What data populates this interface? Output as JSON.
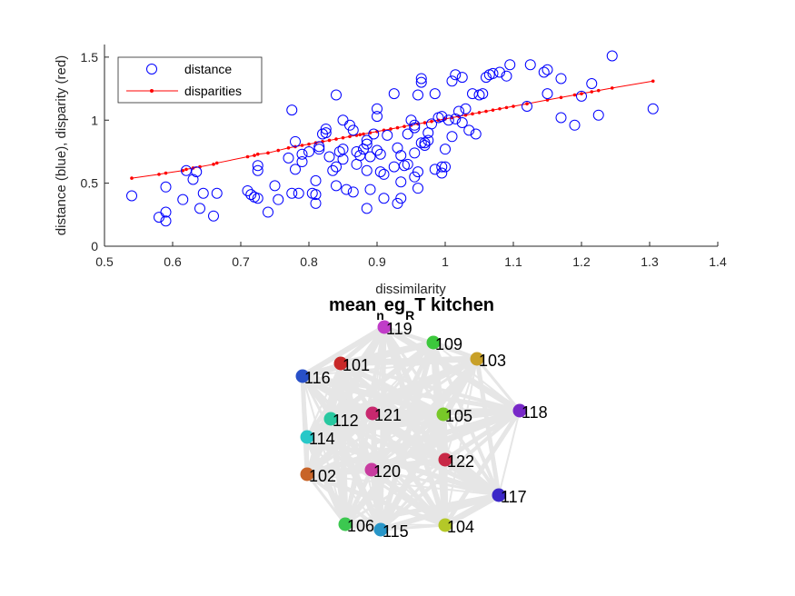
{
  "chart_data": [
    {
      "type": "scatter",
      "xlabel": "dissimilarity",
      "ylabel": "distance (blue), disparity (red)",
      "xlim": [
        0.5,
        1.4
      ],
      "ylim": [
        0,
        1.6
      ],
      "xticks": [
        0.5,
        0.6,
        0.7,
        0.8,
        0.9,
        1.0,
        1.1,
        1.2,
        1.3,
        1.4
      ],
      "xtick_labels": [
        "0.5",
        "0.6",
        "0.7",
        "0.8",
        "0.9",
        "1",
        "1.1",
        "1.2",
        "1.3",
        "1.4"
      ],
      "yticks": [
        0,
        0.5,
        1,
        1.5
      ],
      "ytick_labels": [
        "0",
        "0.5",
        "1",
        "1.5"
      ],
      "grid": false,
      "legend_position": "top-left",
      "series": [
        {
          "name": "distance",
          "marker": "open-circle",
          "color": "#0000ff",
          "points": [
            [
              0.54,
              0.4
            ],
            [
              0.58,
              0.23
            ],
            [
              0.59,
              0.2
            ],
            [
              0.59,
              0.27
            ],
            [
              0.59,
              0.47
            ],
            [
              0.615,
              0.37
            ],
            [
              0.62,
              0.6
            ],
            [
              0.63,
              0.53
            ],
            [
              0.635,
              0.59
            ],
            [
              0.64,
              0.3
            ],
            [
              0.645,
              0.42
            ],
            [
              0.66,
              0.24
            ],
            [
              0.665,
              0.42
            ],
            [
              0.71,
              0.44
            ],
            [
              0.715,
              0.41
            ],
            [
              0.72,
              0.39
            ],
            [
              0.725,
              0.38
            ],
            [
              0.725,
              0.6
            ],
            [
              0.725,
              0.64
            ],
            [
              0.74,
              0.27
            ],
            [
              0.75,
              0.48
            ],
            [
              0.755,
              0.37
            ],
            [
              0.77,
              0.7
            ],
            [
              0.775,
              1.08
            ],
            [
              0.775,
              0.42
            ],
            [
              0.78,
              0.83
            ],
            [
              0.78,
              0.61
            ],
            [
              0.785,
              0.42
            ],
            [
              0.79,
              0.73
            ],
            [
              0.79,
              0.67
            ],
            [
              0.8,
              0.75
            ],
            [
              0.805,
              0.42
            ],
            [
              0.81,
              0.52
            ],
            [
              0.81,
              0.34
            ],
            [
              0.81,
              0.41
            ],
            [
              0.815,
              0.79
            ],
            [
              0.82,
              0.89
            ],
            [
              0.825,
              0.9
            ],
            [
              0.825,
              0.93
            ],
            [
              0.835,
              0.6
            ],
            [
              0.84,
              0.63
            ],
            [
              0.84,
              0.48
            ],
            [
              0.84,
              1.2
            ],
            [
              0.85,
              0.69
            ],
            [
              0.85,
              0.77
            ],
            [
              0.85,
              1.0
            ],
            [
              0.855,
              0.45
            ],
            [
              0.86,
              0.96
            ],
            [
              0.865,
              0.92
            ],
            [
              0.865,
              0.43
            ],
            [
              0.87,
              0.75
            ],
            [
              0.87,
              0.65
            ],
            [
              0.875,
              0.72
            ],
            [
              0.88,
              0.77
            ],
            [
              0.885,
              0.6
            ],
            [
              0.885,
              0.81
            ],
            [
              0.885,
              0.3
            ],
            [
              0.89,
              0.45
            ],
            [
              0.89,
              0.71
            ],
            [
              0.895,
              0.89
            ],
            [
              0.9,
              1.03
            ],
            [
              0.9,
              1.09
            ],
            [
              0.9,
              0.76
            ],
            [
              0.905,
              0.73
            ],
            [
              0.905,
              0.59
            ],
            [
              0.91,
              0.38
            ],
            [
              0.91,
              0.57
            ],
            [
              0.915,
              0.88
            ],
            [
              0.93,
              0.78
            ],
            [
              0.93,
              0.34
            ],
            [
              0.935,
              0.38
            ],
            [
              0.935,
              0.72
            ],
            [
              0.94,
              0.64
            ],
            [
              0.945,
              0.65
            ],
            [
              0.945,
              0.89
            ],
            [
              0.95,
              1.0
            ],
            [
              0.955,
              0.96
            ],
            [
              0.955,
              0.94
            ],
            [
              0.955,
              0.55
            ],
            [
              0.96,
              0.59
            ],
            [
              0.96,
              0.46
            ],
            [
              0.96,
              1.2
            ],
            [
              0.965,
              1.3
            ],
            [
              0.965,
              1.33
            ],
            [
              0.97,
              0.8
            ],
            [
              0.97,
              0.82
            ],
            [
              0.975,
              0.84
            ],
            [
              0.975,
              0.9
            ],
            [
              0.98,
              0.97
            ],
            [
              0.985,
              0.61
            ],
            [
              0.99,
              1.02
            ],
            [
              0.995,
              1.03
            ],
            [
              0.995,
              0.63
            ],
            [
              1.0,
              0.77
            ],
            [
              1.0,
              0.63
            ],
            [
              1.01,
              1.31
            ],
            [
              1.01,
              0.87
            ],
            [
              1.015,
              1.01
            ],
            [
              1.015,
              1.36
            ],
            [
              1.02,
              1.07
            ],
            [
              1.025,
              1.34
            ],
            [
              1.025,
              0.98
            ],
            [
              1.03,
              1.09
            ],
            [
              1.035,
              0.92
            ],
            [
              1.045,
              0.89
            ],
            [
              1.05,
              1.2
            ],
            [
              1.06,
              1.34
            ],
            [
              1.065,
              1.36
            ],
            [
              1.07,
              1.37
            ],
            [
              1.08,
              1.38
            ],
            [
              1.09,
              1.35
            ],
            [
              1.095,
              1.44
            ],
            [
              1.12,
              1.11
            ],
            [
              1.125,
              1.44
            ],
            [
              1.15,
              1.4
            ],
            [
              1.15,
              1.21
            ],
            [
              1.17,
              1.33
            ],
            [
              1.17,
              1.02
            ],
            [
              1.19,
              0.96
            ],
            [
              1.2,
              1.19
            ],
            [
              1.215,
              1.29
            ],
            [
              1.225,
              1.04
            ],
            [
              1.245,
              1.51
            ],
            [
              1.305,
              1.09
            ],
            [
              0.925,
              1.21
            ],
            [
              0.985,
              1.21
            ],
            [
              1.04,
              1.21
            ],
            [
              0.815,
              0.77
            ],
            [
              0.83,
              0.71
            ],
            [
              0.845,
              0.75
            ],
            [
              0.885,
              0.84
            ],
            [
              0.955,
              0.74
            ],
            [
              0.965,
              0.82
            ],
            [
              0.925,
              0.63
            ],
            [
              0.935,
              0.51
            ],
            [
              0.995,
              0.58
            ],
            [
              1.055,
              1.21
            ],
            [
              1.145,
              1.38
            ],
            [
              1.005,
              1.0
            ]
          ]
        },
        {
          "name": "disparities",
          "marker": "line-dot",
          "color": "#ff0000",
          "x": [
            0.54,
            0.58,
            0.59,
            0.615,
            0.62,
            0.63,
            0.64,
            0.66,
            0.665,
            0.71,
            0.72,
            0.725,
            0.74,
            0.755,
            0.77,
            0.78,
            0.79,
            0.8,
            0.81,
            0.82,
            0.83,
            0.84,
            0.85,
            0.86,
            0.87,
            0.875,
            0.88,
            0.89,
            0.9,
            0.91,
            0.92,
            0.93,
            0.94,
            0.95,
            0.96,
            0.97,
            0.98,
            0.99,
            1.0,
            1.01,
            1.02,
            1.03,
            1.04,
            1.05,
            1.06,
            1.07,
            1.08,
            1.09,
            1.1,
            1.12,
            1.15,
            1.17,
            1.19,
            1.2,
            1.215,
            1.225,
            1.245,
            1.305
          ],
          "y": [
            0.54,
            0.57,
            0.58,
            0.6,
            0.61,
            0.62,
            0.63,
            0.65,
            0.66,
            0.71,
            0.72,
            0.73,
            0.74,
            0.76,
            0.78,
            0.79,
            0.8,
            0.81,
            0.82,
            0.83,
            0.84,
            0.85,
            0.86,
            0.87,
            0.88,
            0.885,
            0.89,
            0.9,
            0.91,
            0.92,
            0.93,
            0.94,
            0.95,
            0.96,
            0.97,
            0.98,
            0.99,
            1.0,
            1.01,
            1.02,
            1.03,
            1.04,
            1.05,
            1.06,
            1.07,
            1.08,
            1.09,
            1.1,
            1.11,
            1.13,
            1.16,
            1.18,
            1.2,
            1.21,
            1.225,
            1.235,
            1.255,
            1.31
          ]
        }
      ]
    },
    {
      "type": "network",
      "title_parts": [
        "mean",
        "n",
        "eg",
        "R",
        "T kitchen"
      ],
      "edge_color": "#e6e6e6",
      "nodes": [
        {
          "label": "119",
          "color": "#c03cc8"
        },
        {
          "label": "109",
          "color": "#3cc83c"
        },
        {
          "label": "103",
          "color": "#c8a028"
        },
        {
          "label": "101",
          "color": "#c82828"
        },
        {
          "label": "116",
          "color": "#2850c8"
        },
        {
          "label": "118",
          "color": "#7828c8"
        },
        {
          "label": "121",
          "color": "#c8286e"
        },
        {
          "label": "105",
          "color": "#78c828"
        },
        {
          "label": "112",
          "color": "#28c8a0"
        },
        {
          "label": "114",
          "color": "#28c8c8"
        },
        {
          "label": "122",
          "color": "#c82846"
        },
        {
          "label": "102",
          "color": "#c86428"
        },
        {
          "label": "120",
          "color": "#c83ca0"
        },
        {
          "label": "117",
          "color": "#3c28c8"
        },
        {
          "label": "106",
          "color": "#3cc850"
        },
        {
          "label": "115",
          "color": "#2896c8"
        },
        {
          "label": "104",
          "color": "#b4c828"
        }
      ]
    }
  ]
}
